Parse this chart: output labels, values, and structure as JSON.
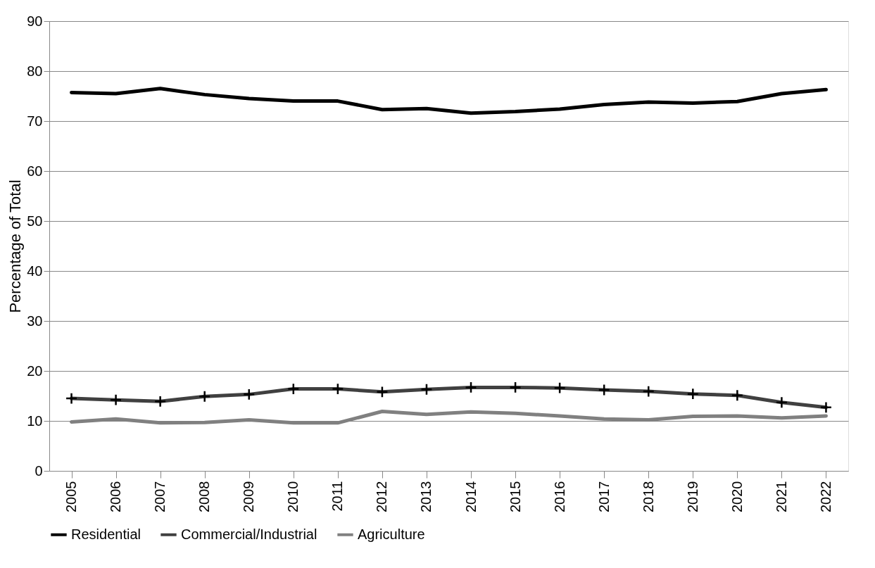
{
  "chart_data": {
    "type": "line",
    "ylabel": "Percentage of Total",
    "categories": [
      "2005",
      "2006",
      "2007",
      "2008",
      "2009",
      "2010",
      "2011",
      "2012",
      "2013",
      "2014",
      "2015",
      "2016",
      "2017",
      "2018",
      "2019",
      "2020",
      "2021",
      "2022"
    ],
    "series": [
      {
        "name": "Residential",
        "color": "#000000",
        "marker": "none",
        "values": [
          75.7,
          75.5,
          76.5,
          75.3,
          74.5,
          74.0,
          74.0,
          72.3,
          72.5,
          71.6,
          71.9,
          72.4,
          73.3,
          73.8,
          73.6,
          73.9,
          75.5,
          76.3
        ]
      },
      {
        "name": "Commercial/Industrial",
        "color": "#404040",
        "marker": "cross",
        "values": [
          14.5,
          14.2,
          13.9,
          14.9,
          15.3,
          16.4,
          16.4,
          15.8,
          16.3,
          16.7,
          16.7,
          16.6,
          16.2,
          15.9,
          15.4,
          15.1,
          13.7,
          12.7
        ]
      },
      {
        "name": "Agriculture",
        "color": "#808080",
        "marker": "none",
        "values": [
          9.8,
          10.4,
          9.6,
          9.7,
          10.2,
          9.6,
          9.6,
          11.9,
          11.3,
          11.8,
          11.5,
          11.0,
          10.4,
          10.2,
          10.9,
          11.0,
          10.6,
          11.0
        ]
      }
    ],
    "ylim": [
      0,
      90
    ],
    "yticks": [
      0,
      10,
      20,
      30,
      40,
      50,
      60,
      70,
      80,
      90
    ],
    "grid": "y",
    "legend": "bottom"
  }
}
